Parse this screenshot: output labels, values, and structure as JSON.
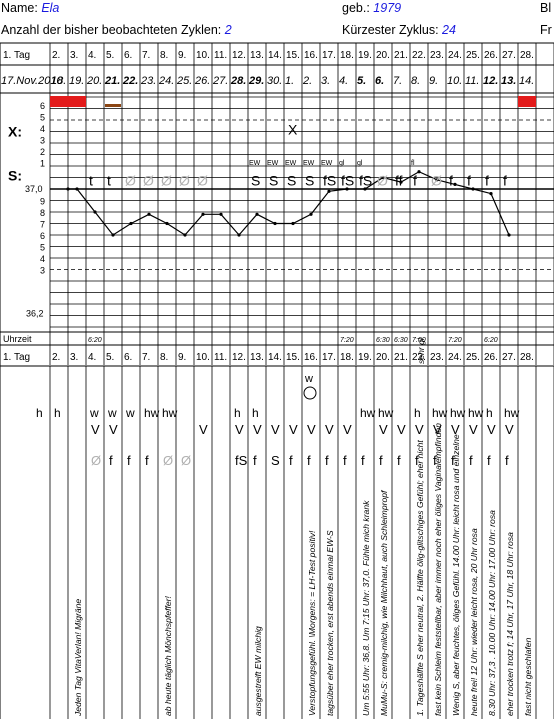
{
  "header": {
    "name_label": "Name:",
    "name_value": "Ela",
    "born_label": "geb.:",
    "born_value": "1979",
    "right_cut_1": "Bl",
    "cycles_label": "Anzahl der bisher beobachteten Zyklen:",
    "cycles_value": "2",
    "shortest_label": "Kürzester Zyklus:",
    "shortest_value": "24",
    "right_cut_2": "Fr"
  },
  "chart": {
    "day_row_label": "1. Tag",
    "day_numbers": [
      "2.",
      "3.",
      "4.",
      "5.",
      "6.",
      "7.",
      "8.",
      "9.",
      "10.",
      "11.",
      "12.",
      "13.",
      "14.",
      "15.",
      "16.",
      "17.",
      "18.",
      "19.",
      "20.",
      "21.",
      "22.",
      "23.",
      "24.",
      "25.",
      "26.",
      "27.",
      "28."
    ],
    "date_first": "17.Nov.2010",
    "dates": [
      "18.",
      "19.",
      "20.",
      "21.",
      "22.",
      "23.",
      "24.",
      "25.",
      "26.",
      "27.",
      "28.",
      "29.",
      "30.",
      "1.",
      "2.",
      "3.",
      "4.",
      "5.",
      "6.",
      "7.",
      "8.",
      "9.",
      "10.",
      "11.",
      "12.",
      "13.",
      "14."
    ],
    "bold_dates": [
      3,
      4,
      10,
      11,
      17,
      18,
      24,
      25
    ],
    "x_label": "X:",
    "s_label": "S:",
    "temp_baseline_label": "37,0",
    "temp_bottom_label": "36,2",
    "upper_ticks": [
      "6",
      "5",
      "4",
      "3",
      "2",
      "1"
    ],
    "lower_ticks": [
      "9",
      "8",
      "7",
      "6",
      "5",
      "4",
      "3"
    ],
    "uhrzeit_label": "Uhrzeit",
    "times": [
      "",
      "",
      "6:20",
      "",
      "",
      "",
      "",
      "",
      "",
      "",
      "",
      "",
      "",
      "",
      "",
      "",
      "7:20",
      "",
      "6:30",
      "6:30",
      "7:00",
      "",
      "7:20",
      "",
      "6:20",
      "",
      ""
    ],
    "temperature_series": [
      37.0,
      37.0,
      36.8,
      36.6,
      36.7,
      36.78,
      36.7,
      36.6,
      36.78,
      36.78,
      36.6,
      36.78,
      36.7,
      36.7,
      36.78,
      36.98,
      37.0,
      37.0,
      37.1,
      37.06,
      37.15,
      37.08,
      37.04,
      37.0,
      36.96,
      36.6
    ],
    "s_symbols": [
      "",
      "",
      "t",
      "t",
      "Ø",
      "Ø",
      "Ø",
      "Ø",
      "Ø",
      "",
      "",
      "S",
      "S",
      "S",
      "S",
      "fS",
      "fS",
      "fS",
      "Ø",
      "ff",
      "f",
      "Ø",
      "f",
      "f",
      "f",
      "f",
      "",
      ""
    ],
    "ew_marks": [
      "",
      "",
      "",
      "",
      "",
      "",
      "",
      "",
      "",
      "",
      "",
      "EW",
      "EW",
      "EW",
      "EW",
      "EW",
      "gl",
      "gl",
      "",
      "",
      "fl",
      "",
      "",
      "",
      "",
      "",
      ""
    ],
    "x_mark_day": "X"
  },
  "lower": {
    "day_row_label": "1. Tag",
    "row_h": [
      "h",
      "h",
      "",
      "w",
      "w",
      "w",
      "hw",
      "hw",
      "",
      "",
      "",
      "h",
      "h",
      "",
      "",
      "",
      "",
      "",
      "hw",
      "hw",
      "",
      "h",
      "hw",
      "hw",
      "hw",
      "h",
      "hw",
      ""
    ],
    "row_v": [
      "",
      "",
      "",
      "V",
      "V",
      "",
      "",
      "",
      "",
      "V",
      "",
      "V",
      "V",
      "V",
      "V",
      "V",
      "V",
      "V",
      "",
      "V",
      "V",
      "V",
      "V",
      "V",
      "V",
      "V",
      "V",
      ""
    ],
    "row_f": [
      "",
      "",
      "",
      "Ø",
      "f",
      "f",
      "f",
      "Ø",
      "Ø",
      "",
      "",
      "fS",
      "f",
      "S",
      "f",
      "f",
      "f",
      "f",
      "f",
      "f",
      "f",
      "f",
      "f",
      "f",
      "f",
      "f",
      "f",
      ""
    ],
    "circle_top": "w",
    "notes": [
      "Jeden Tag VitaVerlan!  Migräne",
      "ab heute täglich Mönchspfeffer!",
      "ausgestreift EW milchig",
      "Verstopfungsgefühl.  \\Morgens: = LH-Test positiv!",
      "tagsüber eher trocken, erst abends einmal EW-S",
      "Um 5:55 Uhr: 36,8. Um 7:15 Uhr: 37,0. Fühle mich krank",
      "MuMu-S: cremig-milchig, wie Milchhaut, auch Schleimpropf",
      "1. Tageshälfte S eher neutral, 2. Hälfte ölig-glitschiges Gefühl; eher nicht",
      "fast kein Schleim feststellbar, aber immer noch eher öliges Vaginalempfinden",
      "Wenig S, aber feuchtes, öliges Gefühl. 14.00 Uhr: leicht rosa und einzelne",
      "heute frei! 12 Uhr: wieder leicht rosa, 20 Uhr rosa",
      "8.30 Uhr: 37,3   . 10.00 Uhr: 14.00 Uhr: 17.00 Uhr: rosa",
      "eher trocken trotz f; 14 Uhr, 17 Uhr, 18 Uhr: rosa",
      "fast nicht geschlafen"
    ],
    "side_note": "sehr gl"
  }
}
